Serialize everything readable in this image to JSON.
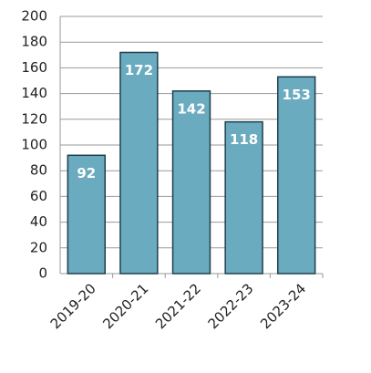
{
  "chart_data": {
    "type": "bar",
    "categories": [
      "2019-20",
      "2020-21",
      "2021-22",
      "2022-23",
      "2023-24"
    ],
    "values": [
      92,
      172,
      142,
      118,
      153
    ],
    "color": "#6aabbf",
    "edge_color": "#1f3f4c",
    "ylim": [
      0,
      200
    ],
    "yticks": [
      0,
      20,
      40,
      60,
      80,
      100,
      120,
      140,
      160,
      180,
      200
    ],
    "grid": true
  }
}
